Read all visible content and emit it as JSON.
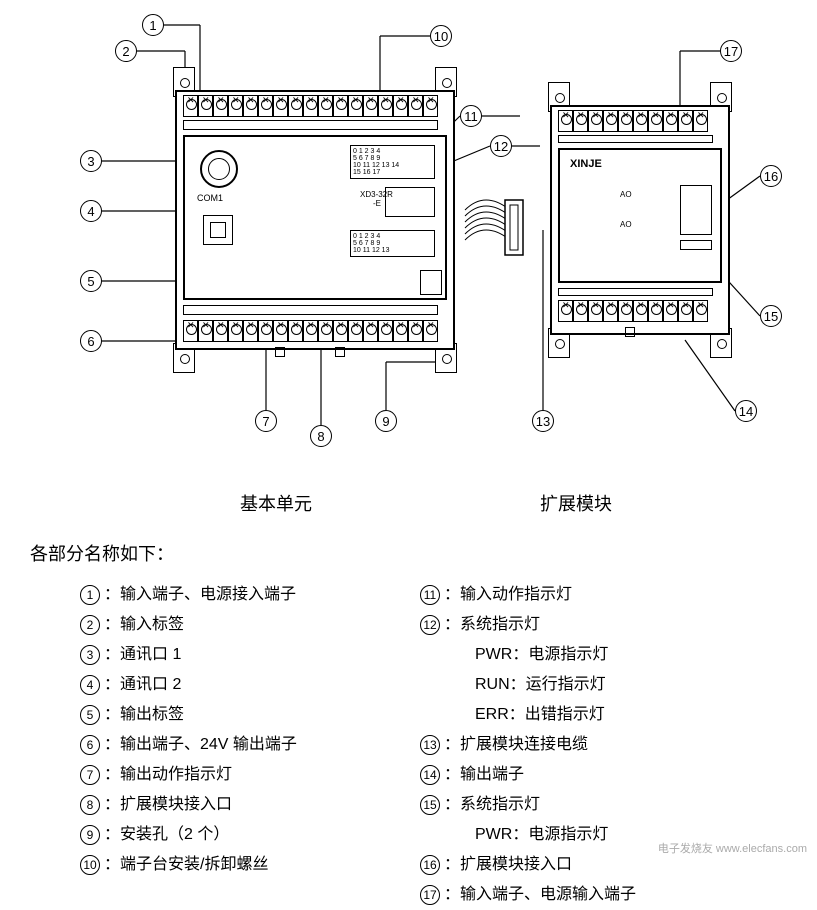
{
  "diagram": {
    "base_unit_label": "基本单元",
    "ext_module_label": "扩展模块",
    "brand_text": "XINJE",
    "model_text_1": "XD3-32R",
    "model_text_2": "-E",
    "com_label": "COM1",
    "input_numbers_row1": "0 1 2 3 4",
    "input_numbers_row2": "5 6 7 8 9",
    "input_numbers_row3": "10 11 12 13 14",
    "input_numbers_row4": "15 16 17",
    "output_numbers_row1": "0 1 2 3 4",
    "output_numbers_row2": "5 6 7 8 9",
    "output_numbers_row3": "10 11 12 13",
    "sys_labels": "PWR RUN ERR",
    "ext_ao": "AO",
    "callouts": {
      "c1": "1",
      "c2": "2",
      "c3": "3",
      "c4": "4",
      "c5": "5",
      "c6": "6",
      "c7": "7",
      "c8": "8",
      "c9": "9",
      "c10": "10",
      "c11": "11",
      "c12": "12",
      "c13": "13",
      "c14": "14",
      "c15": "15",
      "c16": "16",
      "c17": "17"
    }
  },
  "parts_title": "各部分名称如下：",
  "parts_left": [
    {
      "n": "1",
      "t": "输入端子、电源接入端子"
    },
    {
      "n": "2",
      "t": "输入标签"
    },
    {
      "n": "3",
      "t": "通讯口 1"
    },
    {
      "n": "4",
      "t": "通讯口 2"
    },
    {
      "n": "5",
      "t": "输出标签"
    },
    {
      "n": "6",
      "t": "输出端子、24V 输出端子"
    },
    {
      "n": "7",
      "t": "输出动作指示灯"
    },
    {
      "n": "8",
      "t": "扩展模块接入口"
    },
    {
      "n": "9",
      "t": "安装孔（2 个）"
    },
    {
      "n": "10",
      "t": "端子台安装/拆卸螺丝"
    }
  ],
  "parts_right": [
    {
      "n": "11",
      "t": "输入动作指示灯"
    },
    {
      "n": "12",
      "t": "系统指示灯",
      "sub": [
        "PWR：电源指示灯",
        "RUN：运行指示灯",
        "ERR：出错指示灯"
      ]
    },
    {
      "n": "13",
      "t": "扩展模块连接电缆"
    },
    {
      "n": "14",
      "t": "输出端子"
    },
    {
      "n": "15",
      "t": "系统指示灯",
      "sub": [
        "PWR：电源指示灯"
      ]
    },
    {
      "n": "16",
      "t": "扩展模块接入口"
    },
    {
      "n": "17",
      "t": "输入端子、电源输入端子"
    }
  ],
  "watermark": "电子发烧友 www.elecfans.com",
  "colors": {
    "line": "#000000",
    "bg": "#ffffff"
  }
}
